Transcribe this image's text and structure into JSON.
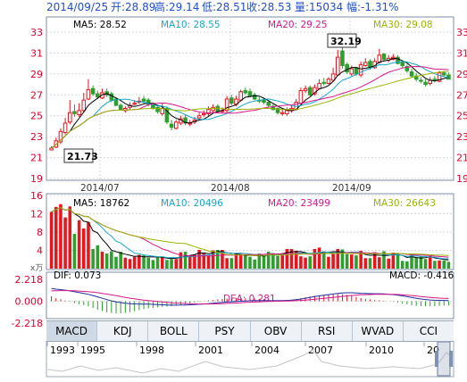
{
  "header": {
    "date": "2014/09/25",
    "open": "开:28.89",
    "high": "高:29.14",
    "low": "低:28.51",
    "close": "收:28.53",
    "volume": "量:15034",
    "change": "幅:-1.31%"
  },
  "colors": {
    "up": "#e8141e",
    "down": "#2e9e2e",
    "ma5": "#000000",
    "ma10": "#17a6cc",
    "ma20": "#d6188c",
    "ma30": "#9bb500",
    "grid": "#d8d8d8",
    "axis_text": "#e0002a",
    "header_text": "#2050c8"
  },
  "tabs": {
    "items": [
      "MACD",
      "KDJ",
      "BOLL",
      "PSY",
      "OBV",
      "RSI",
      "WVAD",
      "CCI"
    ],
    "active": "MACD"
  },
  "timeline": {
    "years": [
      "1993",
      "1995",
      "1998",
      "2001",
      "2004",
      "2007",
      "2010",
      "20"
    ]
  },
  "chart_data": [
    {
      "type": "candlestick",
      "x_tick_labels": [
        "2014/07",
        "2014/08",
        "2014/09"
      ],
      "ylim": [
        19,
        33
      ],
      "y_ticks": [
        19,
        21,
        23,
        25,
        27,
        29,
        31,
        33
      ],
      "legend": [
        {
          "name": "MA5",
          "value": "MA5: 28.52"
        },
        {
          "name": "MA10",
          "value": "MA10: 28.55"
        },
        {
          "name": "MA20",
          "value": "MA20: 29.25"
        },
        {
          "name": "MA30",
          "value": "MA30: 29.08"
        }
      ],
      "annotations": {
        "high": "32.19",
        "low": "21.73"
      },
      "closes": [
        21.9,
        22.6,
        23.5,
        24.3,
        25.3,
        25.2,
        25.5,
        26.5,
        27.5,
        27.1,
        26.8,
        27.2,
        27.0,
        26.5,
        26.0,
        25.6,
        25.7,
        26.0,
        26.2,
        26.4,
        26.4,
        26.1,
        25.7,
        25.4,
        25.7,
        24.4,
        23.9,
        24.4,
        24.7,
        24.3,
        24.3,
        24.6,
        25.0,
        25.2,
        25.6,
        25.8,
        25.4,
        25.5,
        26.6,
        26.2,
        26.6,
        27.3,
        27.2,
        26.9,
        26.6,
        26.4,
        26.3,
        26.0,
        25.6,
        25.3,
        25.3,
        25.5,
        25.7,
        26.3,
        27.4,
        27.6,
        27.0,
        27.7,
        28.1,
        28.1,
        28.5,
        29.0,
        30.6,
        29.8,
        29.2,
        29.5,
        29.0,
        29.9,
        30.1,
        29.7,
        30.2,
        30.8,
        30.4,
        30.5,
        30.6,
        30.0,
        29.8,
        29.3,
        28.8,
        28.5,
        28.3,
        28.0,
        28.4,
        28.4,
        29.1,
        28.9,
        28.5
      ],
      "opens": [
        21.73,
        22.0,
        22.5,
        23.4,
        24.4,
        25.4,
        25.1,
        25.5,
        26.6,
        27.6,
        27.1,
        26.7,
        27.3,
        27.1,
        26.6,
        26.0,
        25.5,
        25.8,
        26.1,
        26.3,
        26.6,
        26.5,
        26.2,
        25.8,
        25.2,
        25.7,
        24.2,
        23.8,
        24.3,
        24.8,
        24.2,
        24.4,
        24.8,
        25.1,
        25.2,
        25.5,
        25.9,
        25.4,
        25.5,
        26.7,
        26.1,
        26.5,
        27.4,
        27.3,
        27.0,
        26.5,
        26.5,
        26.3,
        25.9,
        25.7,
        25.2,
        25.2,
        25.5,
        25.6,
        26.2,
        27.4,
        27.7,
        27.1,
        27.6,
        28.2,
        28.1,
        28.4,
        28.9,
        31.2,
        29.9,
        29.0,
        29.6,
        28.9,
        29.8,
        30.2,
        29.6,
        30.1,
        30.9,
        30.3,
        30.4,
        30.6,
        30.1,
        29.7,
        29.2,
        28.8,
        28.4,
        28.2,
        28.1,
        28.5,
        28.3,
        29.1,
        28.89
      ],
      "highs": [
        22.1,
        22.9,
        23.8,
        24.8,
        26.5,
        26.1,
        26.2,
        27.2,
        28.5,
        27.9,
        27.4,
        27.6,
        27.6,
        27.3,
        26.8,
        26.2,
        25.9,
        26.3,
        26.5,
        26.8,
        26.9,
        26.7,
        26.3,
        25.9,
        26.2,
        25.9,
        24.6,
        24.6,
        25.0,
        25.1,
        24.6,
        24.9,
        25.3,
        25.5,
        25.9,
        26.1,
        26.1,
        25.8,
        26.9,
        27.0,
        26.9,
        27.5,
        27.7,
        27.6,
        27.2,
        26.8,
        26.7,
        26.4,
        26.1,
        25.8,
        25.6,
        25.8,
        26.0,
        26.6,
        27.7,
        27.9,
        27.9,
        28.0,
        28.5,
        28.6,
        28.7,
        29.6,
        31.3,
        32.19,
        30.1,
        29.8,
        29.7,
        30.2,
        30.5,
        30.4,
        30.5,
        31.4,
        31.0,
        30.8,
        30.9,
        30.8,
        30.3,
        29.9,
        29.5,
        29.1,
        28.7,
        28.5,
        28.7,
        28.8,
        29.3,
        29.3,
        29.14
      ],
      "lows": [
        21.73,
        21.9,
        22.3,
        23.2,
        24.2,
        24.9,
        24.9,
        25.3,
        26.5,
        26.9,
        26.6,
        26.6,
        26.8,
        26.3,
        25.9,
        25.5,
        25.3,
        25.6,
        26.0,
        26.1,
        26.2,
        25.9,
        25.6,
        25.2,
        25.0,
        24.2,
        23.6,
        23.7,
        24.1,
        24.1,
        24.0,
        24.2,
        24.6,
        24.9,
        25.0,
        25.3,
        25.3,
        25.2,
        25.3,
        26.0,
        25.9,
        26.4,
        27.0,
        26.8,
        26.5,
        26.2,
        26.1,
        25.8,
        25.5,
        25.1,
        25.0,
        25.0,
        25.3,
        25.5,
        26.1,
        27.2,
        26.9,
        26.9,
        27.5,
        27.9,
        28.0,
        28.3,
        28.8,
        29.5,
        29.0,
        28.8,
        28.8,
        28.7,
        29.7,
        29.4,
        29.5,
        30.0,
        30.2,
        30.1,
        30.3,
        29.9,
        29.6,
        29.1,
        28.7,
        28.3,
        28.1,
        27.8,
        27.9,
        28.2,
        28.2,
        28.7,
        28.51
      ]
    },
    {
      "type": "bar",
      "ylim": [
        0,
        16
      ],
      "y_ticks": [
        4,
        8,
        12,
        16
      ],
      "y_unit": "x万",
      "legend": [
        {
          "name": "MA5",
          "value": "MA5: 18762"
        },
        {
          "name": "MA10",
          "value": "MA10: 20496"
        },
        {
          "name": "MA20",
          "value": "MA20: 23499"
        },
        {
          "name": "MA30",
          "value": "MA30: 26643"
        }
      ],
      "values": [
        12.4,
        13.5,
        14.1,
        11.2,
        13.6,
        7.6,
        10.6,
        8.8,
        10.2,
        4.3,
        5.1,
        3.7,
        3.3,
        3.8,
        2.6,
        3.7,
        2.4,
        2.1,
        2.6,
        3.0,
        2.9,
        2.4,
        1.9,
        2.6,
        2.6,
        1.9,
        2.1,
        2.1,
        3.6,
        3.7,
        2.8,
        3.0,
        4.1,
        3.5,
        2.9,
        4.0,
        4.1,
        4.1,
        2.3,
        2.3,
        3.4,
        3.2,
        3.1,
        2.6,
        2.0,
        3.3,
        2.8,
        3.7,
        3.4,
        2.8,
        3.4,
        4.3,
        4.3,
        3.9,
        2.7,
        2.4,
        2.7,
        4.3,
        4.6,
        3.8,
        2.6,
        3.2,
        4.3,
        4.2,
        3.2,
        3.1,
        2.9,
        3.9,
        2.3,
        2.3,
        3.6,
        2.5,
        3.8,
        2.2,
        3.5,
        3.2,
        1.7,
        1.6,
        3.1,
        2.5,
        2.7,
        2.1,
        2.7,
        1.7,
        1.8,
        1.8,
        1.5
      ]
    },
    {
      "type": "line",
      "ylim": [
        -2.218,
        2.218
      ],
      "y_ticks": [
        "2.218",
        "0.000",
        "-2.218"
      ],
      "legend": [
        {
          "name": "DIF",
          "value": "DIF: 0.073"
        },
        {
          "name": "DEA",
          "value": "DEA: 0.281"
        },
        {
          "name": "MACD",
          "value": "MACD: -0.416"
        }
      ],
      "dif": [
        1.3,
        1.22,
        1.18,
        1.12,
        1.05,
        0.96,
        0.88,
        0.8,
        0.7,
        0.58,
        0.44,
        0.3,
        0.16,
        0.04,
        -0.06,
        -0.14,
        -0.2,
        -0.24,
        -0.27,
        -0.28,
        -0.29,
        -0.3,
        -0.32,
        -0.34,
        -0.36,
        -0.38,
        -0.4,
        -0.4,
        -0.39,
        -0.38,
        -0.36,
        -0.34,
        -0.31,
        -0.28,
        -0.24,
        -0.2,
        -0.16,
        -0.12,
        -0.08,
        -0.05,
        -0.02,
        0.01,
        0.03,
        0.05,
        0.06,
        0.06,
        0.06,
        0.05,
        0.05,
        0.05,
        0.06,
        0.08,
        0.11,
        0.16,
        0.23,
        0.31,
        0.39,
        0.47,
        0.54,
        0.61,
        0.67,
        0.73,
        0.8,
        0.84,
        0.86,
        0.86,
        0.84,
        0.81,
        0.79,
        0.77,
        0.76,
        0.76,
        0.74,
        0.71,
        0.67,
        0.61,
        0.54,
        0.46,
        0.38,
        0.3,
        0.23,
        0.17,
        0.13,
        0.1,
        0.09,
        0.08,
        0.073
      ],
      "dea": [
        1.05,
        1.07,
        1.08,
        1.08,
        1.08,
        1.06,
        1.03,
        1.0,
        0.96,
        0.92,
        0.87,
        0.8,
        0.72,
        0.64,
        0.56,
        0.47,
        0.39,
        0.31,
        0.24,
        0.17,
        0.11,
        0.06,
        0.02,
        -0.03,
        -0.07,
        -0.11,
        -0.15,
        -0.18,
        -0.21,
        -0.23,
        -0.25,
        -0.27,
        -0.28,
        -0.28,
        -0.28,
        -0.27,
        -0.26,
        -0.24,
        -0.22,
        -0.2,
        -0.18,
        -0.15,
        -0.12,
        -0.1,
        -0.08,
        -0.06,
        -0.04,
        -0.02,
        -0.01,
        0.0,
        0.01,
        0.02,
        0.04,
        0.06,
        0.08,
        0.11,
        0.15,
        0.19,
        0.24,
        0.29,
        0.34,
        0.39,
        0.44,
        0.49,
        0.54,
        0.58,
        0.62,
        0.65,
        0.67,
        0.68,
        0.7,
        0.71,
        0.71,
        0.71,
        0.7,
        0.68,
        0.66,
        0.62,
        0.58,
        0.53,
        0.48,
        0.43,
        0.39,
        0.35,
        0.32,
        0.3,
        0.281
      ]
    }
  ]
}
